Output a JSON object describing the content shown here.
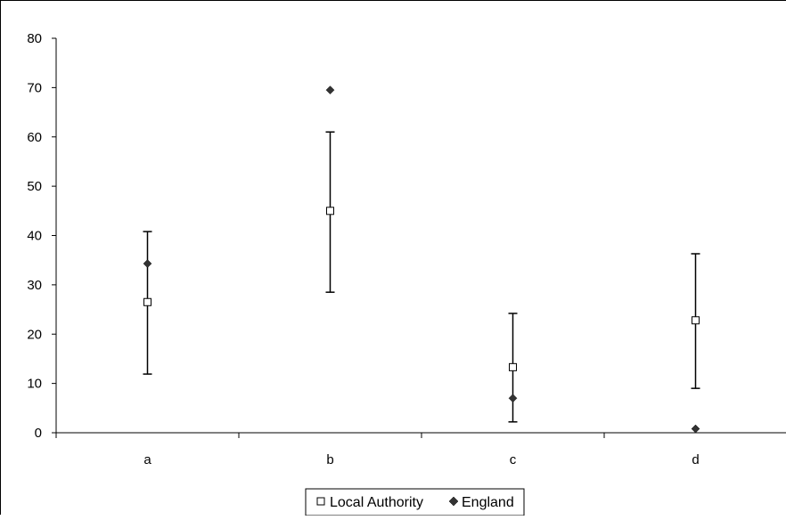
{
  "chart_data": {
    "type": "scatter",
    "title": "",
    "xlabel": "",
    "ylabel": "",
    "categories": [
      "a",
      "b",
      "c",
      "d"
    ],
    "ylim": [
      0,
      80
    ],
    "y_ticks": [
      "0",
      "10",
      "20",
      "30",
      "40",
      "50",
      "60",
      "70",
      "80"
    ],
    "grid": false,
    "legend_position": "bottom",
    "series": [
      {
        "name": "Local Authority",
        "marker": "hollow-square",
        "values": [
          26.5,
          45,
          13.3,
          22.8
        ],
        "error_low": [
          11.9,
          28.5,
          2.2,
          9.0
        ],
        "error_high": [
          40.8,
          61.0,
          24.2,
          36.3
        ]
      },
      {
        "name": "England",
        "marker": "filled-diamond",
        "values": [
          34.3,
          69.5,
          7.0,
          0.8
        ]
      }
    ]
  },
  "colors": {
    "axis": "#000000",
    "local_authority_marker_fill": "#ffffff",
    "marker_stroke": "#000000",
    "england_marker_fill": "#333333"
  }
}
